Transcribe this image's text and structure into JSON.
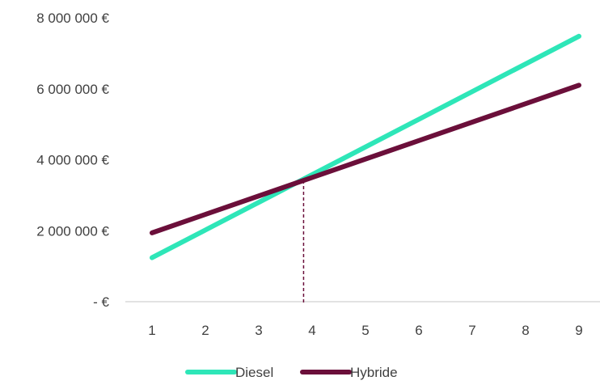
{
  "chart_data": {
    "type": "line",
    "x": [
      1,
      2,
      3,
      4,
      5,
      6,
      7,
      8,
      9
    ],
    "x_tick_labels": [
      "1",
      "2",
      "3",
      "4",
      "5",
      "6",
      "7",
      "8",
      "9"
    ],
    "y_tick_labels": [
      "-   €",
      "2 000 000 €",
      "4 000 000 €",
      "6 000 000 €",
      "8 000 000 €"
    ],
    "y_ticks": [
      0,
      2000000,
      4000000,
      6000000,
      8000000
    ],
    "ylim": [
      0,
      8000000
    ],
    "grid": false,
    "legend_position": "bottom",
    "series": [
      {
        "name": "Diesel",
        "color": "#2EE6B8",
        "values": [
          1240000,
          2020000,
          2800000,
          3580000,
          4360000,
          5140000,
          5920000,
          6700000,
          7480000
        ]
      },
      {
        "name": "Hybride",
        "color": "#6B0F3A",
        "values": [
          1940000,
          2460000,
          2980000,
          3500000,
          4020000,
          4540000,
          5060000,
          5580000,
          6100000
        ]
      }
    ],
    "annotation": {
      "type": "vertical-dashed-line",
      "x": 3.84,
      "y": 3420000,
      "color": "#6B0F3A"
    }
  }
}
